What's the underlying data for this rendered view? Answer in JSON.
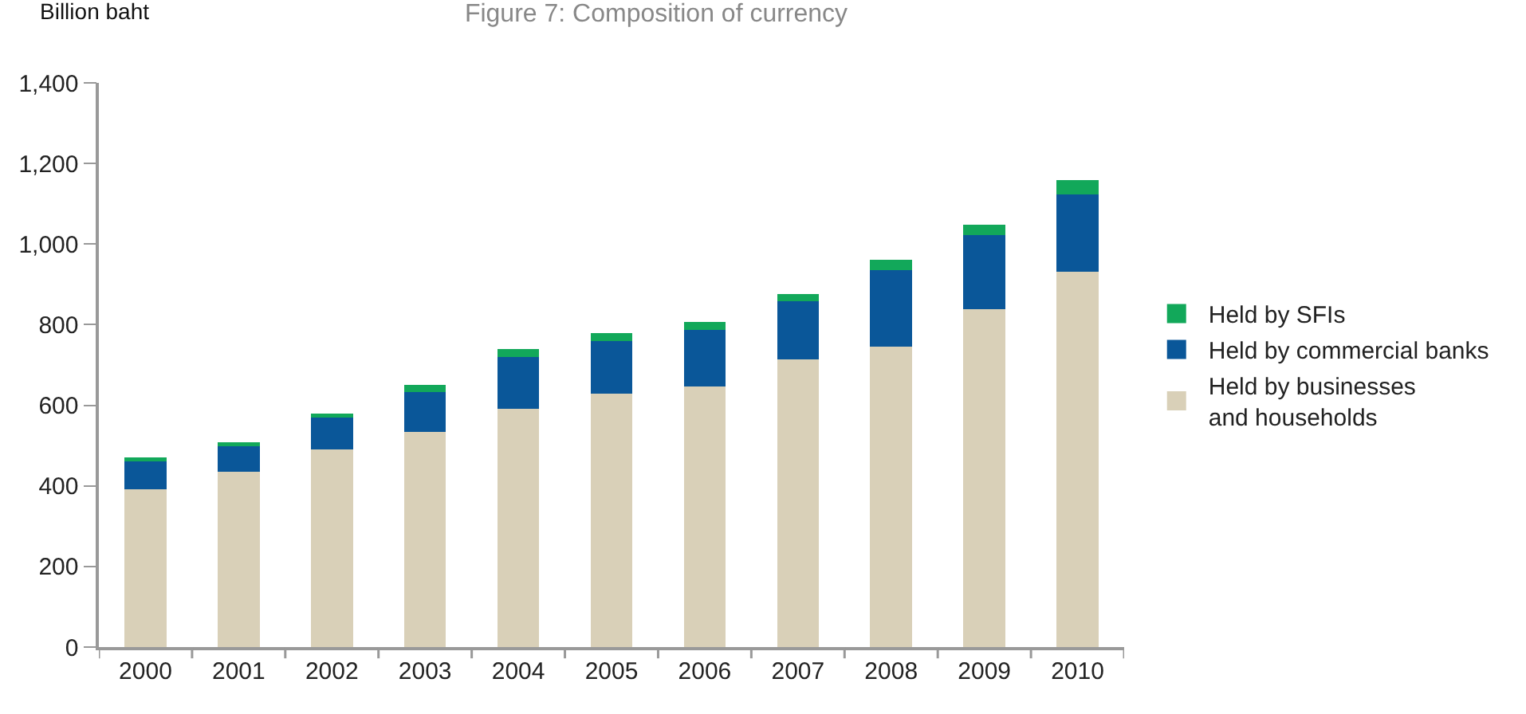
{
  "chart_data": {
    "type": "bar",
    "title": "Figure 7: Composition of currency",
    "ylabel": "Billion baht",
    "categories": [
      "2000",
      "2001",
      "2002",
      "2003",
      "2004",
      "2005",
      "2006",
      "2007",
      "2008",
      "2009",
      "2010"
    ],
    "stacked": true,
    "series": [
      {
        "name": "Held by businesses\nand households",
        "color": "#d9d0b8",
        "values": [
          392,
          436,
          490,
          533,
          592,
          628,
          647,
          714,
          745,
          839,
          932
        ]
      },
      {
        "name": "Held by commercial banks",
        "color": "#0a5799",
        "values": [
          68,
          63,
          79,
          99,
          128,
          131,
          141,
          144,
          191,
          183,
          192
        ]
      },
      {
        "name": "Held by SFIs",
        "color": "#12a85a",
        "values": [
          10,
          10,
          10,
          18,
          20,
          20,
          19,
          18,
          26,
          26,
          34
        ]
      }
    ],
    "ylim": [
      0,
      1400
    ],
    "yticks": [
      0,
      200,
      400,
      600,
      800,
      {
        "value": 1000,
        "label": "1,000"
      },
      {
        "value": 1200,
        "label": "1,200"
      },
      {
        "value": 1400,
        "label": "1,400"
      }
    ],
    "grid": false,
    "legend": "right"
  }
}
